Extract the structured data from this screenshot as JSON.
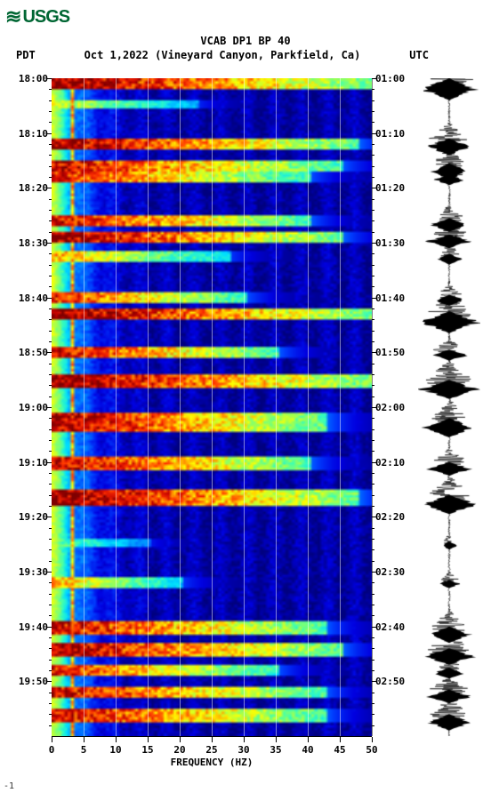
{
  "logo_text": "USGS",
  "title_line1": "VCAB DP1 BP 40",
  "title_date": "Oct 1,2022",
  "title_location": "(Vineyard Canyon, Parkfield, Ca)",
  "tz_left": "PDT",
  "tz_right": "UTC",
  "x_axis_title": "FREQUENCY (HZ)",
  "x_ticks": [
    0,
    5,
    10,
    15,
    20,
    25,
    30,
    35,
    40,
    45,
    50
  ],
  "x_tick_labels": [
    "0",
    "5",
    "10",
    "15",
    "20",
    "25",
    "30",
    "35",
    "40",
    "45",
    "50"
  ],
  "y_ticks_left": [
    "18:00",
    "18:10",
    "18:20",
    "18:30",
    "18:40",
    "18:50",
    "19:00",
    "19:10",
    "19:20",
    "19:30",
    "19:40",
    "19:50"
  ],
  "y_ticks_right": [
    "01:00",
    "01:10",
    "01:20",
    "01:30",
    "01:40",
    "01:50",
    "02:00",
    "02:10",
    "02:20",
    "02:30",
    "02:40",
    "02:50"
  ],
  "y_time_start_min": 0,
  "y_time_end_min": 120,
  "colors": {
    "bg": "#ffffff",
    "logo": "#006633",
    "grid": "#ffffff",
    "axis": "#000000",
    "seis": "#000000",
    "palette_low": "#00007f",
    "palette": [
      "#00007f",
      "#0000e0",
      "#0040ff",
      "#0090ff",
      "#00e0ff",
      "#40ffb0",
      "#a0ff50",
      "#ffff00",
      "#ff9000",
      "#ff3000",
      "#c00000",
      "#7f0000"
    ]
  },
  "spectrogram": {
    "type": "spectrogram",
    "freq_range": [
      0,
      50
    ],
    "time_rows": 240,
    "freq_cols": 100,
    "events": [
      {
        "t0": 0,
        "t1": 3,
        "intensity": 0.98,
        "freq_extent": 1.0
      },
      {
        "t0": 8,
        "t1": 10,
        "intensity": 0.6,
        "freq_extent": 0.45
      },
      {
        "t0": 22,
        "t1": 25,
        "intensity": 0.95,
        "freq_extent": 0.95
      },
      {
        "t0": 30,
        "t1": 33,
        "intensity": 0.9,
        "freq_extent": 0.9
      },
      {
        "t0": 34,
        "t1": 37,
        "intensity": 0.85,
        "freq_extent": 0.8
      },
      {
        "t0": 50,
        "t1": 53,
        "intensity": 0.9,
        "freq_extent": 0.8
      },
      {
        "t0": 56,
        "t1": 59,
        "intensity": 0.95,
        "freq_extent": 0.9
      },
      {
        "t0": 63,
        "t1": 66,
        "intensity": 0.7,
        "freq_extent": 0.55
      },
      {
        "t0": 78,
        "t1": 81,
        "intensity": 0.85,
        "freq_extent": 0.6
      },
      {
        "t0": 84,
        "t1": 87,
        "intensity": 0.98,
        "freq_extent": 1.0
      },
      {
        "t0": 98,
        "t1": 101,
        "intensity": 0.9,
        "freq_extent": 0.7
      },
      {
        "t0": 108,
        "t1": 112,
        "intensity": 0.98,
        "freq_extent": 1.0
      },
      {
        "t0": 122,
        "t1": 128,
        "intensity": 0.95,
        "freq_extent": 0.85
      },
      {
        "t0": 138,
        "t1": 142,
        "intensity": 0.92,
        "freq_extent": 0.8
      },
      {
        "t0": 150,
        "t1": 155,
        "intensity": 0.98,
        "freq_extent": 0.95
      },
      {
        "t0": 168,
        "t1": 170,
        "intensity": 0.5,
        "freq_extent": 0.3
      },
      {
        "t0": 182,
        "t1": 185,
        "intensity": 0.7,
        "freq_extent": 0.4
      },
      {
        "t0": 198,
        "t1": 202,
        "intensity": 0.9,
        "freq_extent": 0.85
      },
      {
        "t0": 206,
        "t1": 210,
        "intensity": 0.95,
        "freq_extent": 0.9
      },
      {
        "t0": 214,
        "t1": 217,
        "intensity": 0.85,
        "freq_extent": 0.7
      },
      {
        "t0": 222,
        "t1": 225,
        "intensity": 0.9,
        "freq_extent": 0.85
      },
      {
        "t0": 230,
        "t1": 234,
        "intensity": 0.9,
        "freq_extent": 0.85
      }
    ],
    "base_noise_level": 0.08,
    "low_freq_baseline": 0.55
  },
  "seismogram": {
    "type": "waveform",
    "samples": 1500,
    "events_amp": [
      {
        "t": 0,
        "amp": 0.9,
        "dur": 8
      },
      {
        "t": 22,
        "amp": 0.7,
        "dur": 6
      },
      {
        "t": 31,
        "amp": 0.6,
        "dur": 6
      },
      {
        "t": 35,
        "amp": 0.5,
        "dur": 4
      },
      {
        "t": 51,
        "amp": 0.6,
        "dur": 5
      },
      {
        "t": 57,
        "amp": 0.7,
        "dur": 5
      },
      {
        "t": 64,
        "amp": 0.4,
        "dur": 4
      },
      {
        "t": 79,
        "amp": 0.5,
        "dur": 4
      },
      {
        "t": 85,
        "amp": 0.95,
        "dur": 8
      },
      {
        "t": 99,
        "amp": 0.6,
        "dur": 4
      },
      {
        "t": 110,
        "amp": 0.9,
        "dur": 7
      },
      {
        "t": 124,
        "amp": 0.8,
        "dur": 7
      },
      {
        "t": 140,
        "amp": 0.7,
        "dur": 5
      },
      {
        "t": 152,
        "amp": 0.85,
        "dur": 7
      },
      {
        "t": 169,
        "amp": 0.25,
        "dur": 3
      },
      {
        "t": 183,
        "amp": 0.35,
        "dur": 3
      },
      {
        "t": 200,
        "amp": 0.7,
        "dur": 6
      },
      {
        "t": 208,
        "amp": 0.8,
        "dur": 6
      },
      {
        "t": 215,
        "amp": 0.5,
        "dur": 4
      },
      {
        "t": 223,
        "amp": 0.7,
        "dur": 5
      },
      {
        "t": 232,
        "amp": 0.7,
        "dur": 6
      }
    ],
    "noise_amp": 0.04
  },
  "footer": "-1"
}
